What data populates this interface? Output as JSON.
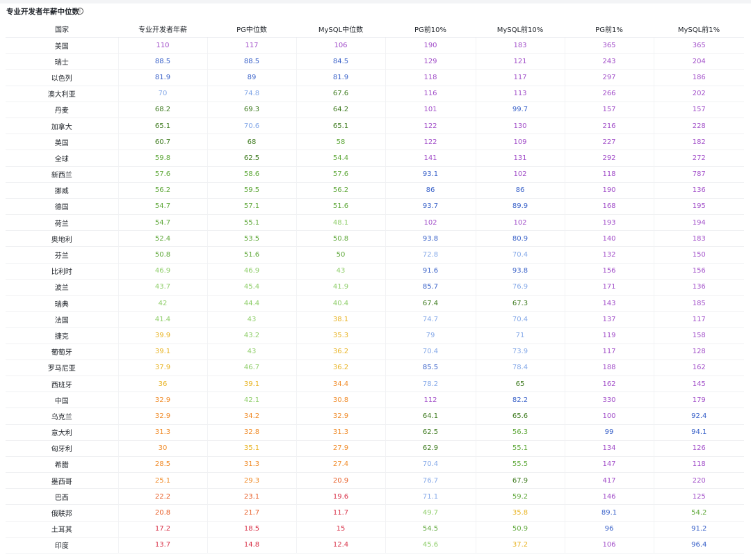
{
  "title": "专业开发者年薪中位数",
  "table": {
    "headers": [
      "国家",
      "专业开发者年薪",
      "PG中位数",
      "MySQL中位数",
      "PG前10%",
      "MySQL前10%",
      "PG前1%",
      "MySQL前1%"
    ],
    "rows": [
      [
        "美国",
        110,
        117,
        106,
        190,
        183,
        365,
        365
      ],
      [
        "瑞士",
        88.5,
        88.5,
        84.5,
        129,
        121,
        243,
        204
      ],
      [
        "以色列",
        81.9,
        89,
        81.9,
        118,
        117,
        297,
        186
      ],
      [
        "澳大利亚",
        70,
        74.8,
        67.6,
        116,
        113,
        266,
        202
      ],
      [
        "丹麦",
        68.2,
        69.3,
        64.2,
        101,
        99.7,
        157,
        157
      ],
      [
        "加拿大",
        65.1,
        70.6,
        65.1,
        122,
        130,
        216,
        228
      ],
      [
        "英国",
        60.7,
        68,
        58,
        122,
        109,
        227,
        182
      ],
      [
        "全球",
        59.8,
        62.5,
        54.4,
        141,
        131,
        292,
        272
      ],
      [
        "新西兰",
        57.6,
        58.6,
        57.6,
        93.1,
        102,
        118,
        787
      ],
      [
        "挪威",
        56.2,
        59.5,
        56.2,
        86,
        86,
        190,
        136
      ],
      [
        "德国",
        54.7,
        57.1,
        51.6,
        93.7,
        89.9,
        168,
        195
      ],
      [
        "荷兰",
        54.7,
        55.1,
        48.1,
        102,
        102,
        193,
        194
      ],
      [
        "奥地利",
        52.4,
        53.5,
        50.8,
        93.8,
        80.9,
        140,
        183
      ],
      [
        "芬兰",
        50.8,
        51.6,
        50,
        72.8,
        70.4,
        132,
        150
      ],
      [
        "比利时",
        46.9,
        46.9,
        43,
        91.6,
        93.8,
        156,
        156
      ],
      [
        "波兰",
        43.7,
        45.4,
        41.9,
        85.7,
        76.9,
        171,
        136
      ],
      [
        "瑞典",
        42,
        44.4,
        40.4,
        67.4,
        67.3,
        143,
        185
      ],
      [
        "法国",
        41.4,
        43,
        38.1,
        74.7,
        70.4,
        137,
        117
      ],
      [
        "捷克",
        39.9,
        43.2,
        35.3,
        79,
        71,
        119,
        158
      ],
      [
        "葡萄牙",
        39.1,
        43,
        36.2,
        70.4,
        73.9,
        117,
        128
      ],
      [
        "罗马尼亚",
        37.9,
        46.7,
        36.2,
        85.5,
        78.4,
        188,
        162
      ],
      [
        "西班牙",
        36,
        39.1,
        34.4,
        78.2,
        65,
        162,
        145
      ],
      [
        "中国",
        32.9,
        42.1,
        30.8,
        112,
        82.2,
        330,
        179
      ],
      [
        "乌克兰",
        32.9,
        34.2,
        32.9,
        64.1,
        65.6,
        100,
        92.4
      ],
      [
        "意大利",
        31.3,
        32.8,
        31.3,
        62.5,
        56.3,
        99,
        94.1
      ],
      [
        "匈牙利",
        30,
        35.1,
        27.9,
        62.9,
        55.1,
        134,
        126
      ],
      [
        "希腊",
        28.5,
        31.3,
        27.4,
        70.4,
        55.5,
        147,
        118
      ],
      [
        "墨西哥",
        25.1,
        29.3,
        20.9,
        76.7,
        67.9,
        417,
        220
      ],
      [
        "巴西",
        22.2,
        23.1,
        19.6,
        71.1,
        59.2,
        146,
        125
      ],
      [
        "俄联邦",
        20.8,
        21.7,
        11.7,
        49.7,
        35.8,
        89.1,
        54.2
      ],
      [
        "土耳其",
        17.2,
        18.5,
        15,
        54.5,
        50.9,
        96,
        91.2
      ],
      [
        "印度",
        13.7,
        14.8,
        12.4,
        45.6,
        37.2,
        106,
        96.4
      ]
    ]
  }
}
